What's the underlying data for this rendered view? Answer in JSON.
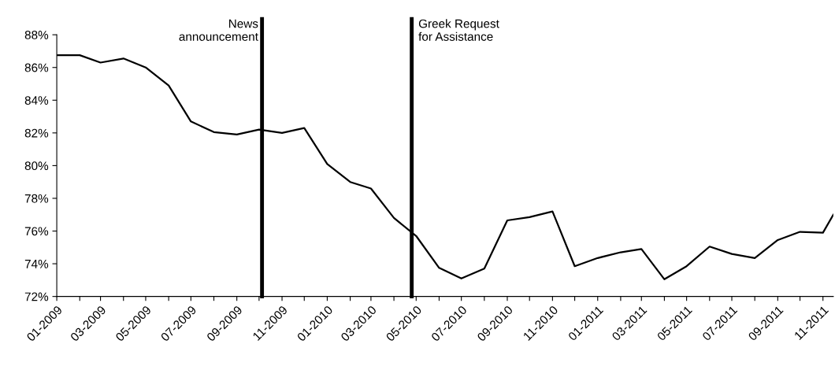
{
  "chart_data": {
    "type": "line",
    "x": [
      "2009-01",
      "2009-02",
      "2009-03",
      "2009-04",
      "2009-05",
      "2009-06",
      "2009-07",
      "2009-08",
      "2009-09",
      "2009-10",
      "2009-11",
      "2009-12",
      "2010-01",
      "2010-02",
      "2010-03",
      "2010-04",
      "2010-05",
      "2010-06",
      "2010-07",
      "2010-08",
      "2010-09",
      "2010-10",
      "2010-11",
      "2010-12",
      "2011-01",
      "2011-02",
      "2011-03",
      "2011-04",
      "2011-05",
      "2011-06",
      "2011-07",
      "2011-08",
      "2011-09",
      "2011-10",
      "2011-11",
      "2011-11-15"
    ],
    "series": [
      {
        "color": "#000000",
        "values": [
          86.75,
          86.75,
          86.3,
          86.55,
          86.0,
          84.9,
          82.7,
          82.05,
          81.9,
          82.2,
          82.0,
          82.3,
          80.1,
          79.0,
          78.6,
          76.8,
          75.7,
          73.75,
          73.1,
          73.7,
          76.65,
          76.85,
          77.2,
          73.85,
          74.35,
          74.7,
          74.9,
          73.05,
          73.85,
          75.05,
          74.6,
          74.35,
          75.45,
          75.95,
          75.9,
          77.0
        ]
      }
    ],
    "xlim": [
      "2009-01",
      "2011-11-15"
    ],
    "xticks": [
      {
        "value": "2009-01",
        "label": "01-2009"
      },
      {
        "value": "2009-02",
        "label": null
      },
      {
        "value": "2009-03",
        "label": "03-2009"
      },
      {
        "value": "2009-04",
        "label": null
      },
      {
        "value": "2009-05",
        "label": "05-2009"
      },
      {
        "value": "2009-06",
        "label": null
      },
      {
        "value": "2009-07",
        "label": "07-2009"
      },
      {
        "value": "2009-08",
        "label": null
      },
      {
        "value": "2009-09",
        "label": "09-2009"
      },
      {
        "value": "2009-10",
        "label": null
      },
      {
        "value": "2009-11",
        "label": "11-2009"
      },
      {
        "value": "2009-12",
        "label": null
      },
      {
        "value": "2010-01",
        "label": "01-2010"
      },
      {
        "value": "2010-02",
        "label": null
      },
      {
        "value": "2010-03",
        "label": "03-2010"
      },
      {
        "value": "2010-04",
        "label": null
      },
      {
        "value": "2010-05",
        "label": "05-2010"
      },
      {
        "value": "2010-06",
        "label": null
      },
      {
        "value": "2010-07",
        "label": "07-2010"
      },
      {
        "value": "2010-08",
        "label": null
      },
      {
        "value": "2010-09",
        "label": "09-2010"
      },
      {
        "value": "2010-10",
        "label": null
      },
      {
        "value": "2010-11",
        "label": "11-2010"
      },
      {
        "value": "2010-12",
        "label": null
      },
      {
        "value": "2011-01",
        "label": "01-2011"
      },
      {
        "value": "2011-02",
        "label": null
      },
      {
        "value": "2011-03",
        "label": "03-2011"
      },
      {
        "value": "2011-04",
        "label": null
      },
      {
        "value": "2011-05",
        "label": "05-2011"
      },
      {
        "value": "2011-06",
        "label": null
      },
      {
        "value": "2011-07",
        "label": "07-2011"
      },
      {
        "value": "2011-08",
        "label": null
      },
      {
        "value": "2011-09",
        "label": "09-2011"
      },
      {
        "value": "2011-10",
        "label": null
      },
      {
        "value": "2011-11",
        "label": "11-2011"
      }
    ],
    "ylim": [
      72,
      88
    ],
    "yticks": [
      {
        "value": 72,
        "label": "72%"
      },
      {
        "value": 74,
        "label": "74%"
      },
      {
        "value": 76,
        "label": "76%"
      },
      {
        "value": 78,
        "label": "78%"
      },
      {
        "value": 80,
        "label": "80%"
      },
      {
        "value": 82,
        "label": "82%"
      },
      {
        "value": 84,
        "label": "84%"
      },
      {
        "value": 86,
        "label": "86%"
      },
      {
        "value": 88,
        "label": "88%"
      }
    ],
    "ref_lines": [
      {
        "axis": "x",
        "value": "2009-10-05",
        "label": "News\nannouncement",
        "color": "#000000"
      },
      {
        "axis": "x",
        "value": "2010-04-25",
        "label": "Greek Request\nfor Assistance",
        "color": "#000000"
      }
    ],
    "grid": false,
    "legend": false,
    "marker": "none",
    "line_style": "solid"
  }
}
